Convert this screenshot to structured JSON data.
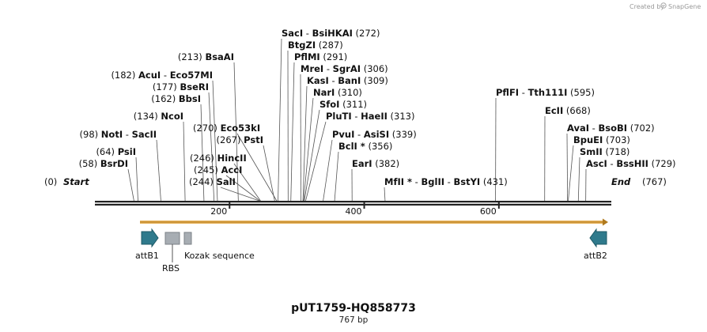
{
  "credit": {
    "created_by": "Created by",
    "brand": "SnapGene"
  },
  "map": {
    "title": "pUT1759-HQ858773",
    "length_label": "767 bp",
    "length_bp": 767,
    "start_label": "Start",
    "end_label": "End",
    "start_pos": "(0)",
    "end_pos": "(767)",
    "ticks": [
      {
        "bp": 200,
        "label": "200"
      },
      {
        "bp": 400,
        "label": "400"
      },
      {
        "bp": 600,
        "label": "600"
      }
    ]
  },
  "sites": [
    {
      "names": [
        {
          "n": "SacI"
        },
        {
          "n": "BsiHKAI"
        }
      ],
      "pos": "(272)",
      "bp": 272
    },
    {
      "names": [
        {
          "n": "BtgZI"
        }
      ],
      "pos": "(287)",
      "bp": 287
    },
    {
      "names": [
        {
          "n": "PflMI"
        }
      ],
      "pos": "(291)",
      "bp": 291
    },
    {
      "names": [
        {
          "n": "MreI"
        },
        {
          "n": "SgrAI"
        }
      ],
      "pos": "(306)",
      "bp": 306
    },
    {
      "names": [
        {
          "n": "KasI"
        },
        {
          "n": "BanI"
        }
      ],
      "pos": "(309)",
      "bp": 309
    },
    {
      "names": [
        {
          "n": "NarI"
        }
      ],
      "pos": "(310)",
      "bp": 310
    },
    {
      "names": [
        {
          "n": "SfoI"
        }
      ],
      "pos": "(311)",
      "bp": 311
    },
    {
      "names": [
        {
          "n": "PluTI"
        },
        {
          "n": "HaeII"
        }
      ],
      "pos": "(313)",
      "bp": 313
    },
    {
      "names": [
        {
          "n": "PvuI"
        },
        {
          "n": "AsiSI"
        }
      ],
      "pos": "(339)",
      "bp": 339
    },
    {
      "names": [
        {
          "n": "BclI",
          "star": "*"
        }
      ],
      "pos": "(356)",
      "bp": 356
    },
    {
      "names": [
        {
          "n": "EarI"
        }
      ],
      "pos": "(382)",
      "bp": 382
    },
    {
      "names": [
        {
          "n": "MfII",
          "star": "*"
        },
        {
          "n": "BglII"
        },
        {
          "n": "BstYI"
        }
      ],
      "pos": "(431)",
      "bp": 431
    },
    {
      "names": [
        {
          "n": "BsaAI"
        }
      ],
      "pos": "(213)",
      "bp": 213
    },
    {
      "names": [
        {
          "n": "AcuI"
        },
        {
          "n": "Eco57MI"
        }
      ],
      "pos": "(182)",
      "bp": 182
    },
    {
      "names": [
        {
          "n": "BseRI"
        }
      ],
      "pos": "(177)",
      "bp": 177
    },
    {
      "names": [
        {
          "n": "BbsI"
        }
      ],
      "pos": "(162)",
      "bp": 162
    },
    {
      "names": [
        {
          "n": "NcoI"
        }
      ],
      "pos": "(134)",
      "bp": 134
    },
    {
      "names": [
        {
          "n": "Eco53kI"
        }
      ],
      "pos": "(270)",
      "bp": 270
    },
    {
      "names": [
        {
          "n": "PstI"
        }
      ],
      "pos": "(267)",
      "bp": 267
    },
    {
      "names": [
        {
          "n": "NotI"
        },
        {
          "n": "SacII"
        }
      ],
      "pos": "(98)",
      "bp": 98
    },
    {
      "names": [
        {
          "n": "PsiI"
        }
      ],
      "pos": "(64)",
      "bp": 64
    },
    {
      "names": [
        {
          "n": "BsrDI"
        }
      ],
      "pos": "(58)",
      "bp": 58
    },
    {
      "names": [
        {
          "n": "HincII"
        }
      ],
      "pos": "(246)",
      "bp": 246
    },
    {
      "names": [
        {
          "n": "AccI"
        }
      ],
      "pos": "(245)",
      "bp": 245
    },
    {
      "names": [
        {
          "n": "SalI"
        }
      ],
      "pos": "(244)",
      "bp": 244
    },
    {
      "names": [
        {
          "n": "PflFI"
        },
        {
          "n": "Tth111I"
        }
      ],
      "pos": "(595)",
      "bp": 595
    },
    {
      "names": [
        {
          "n": "EcII"
        }
      ],
      "pos": "(668)",
      "bp": 668
    },
    {
      "names": [
        {
          "n": "AvaI"
        },
        {
          "n": "BsoBI"
        }
      ],
      "pos": "(702)",
      "bp": 702
    },
    {
      "names": [
        {
          "n": "BpuEI"
        }
      ],
      "pos": "(703)",
      "bp": 703
    },
    {
      "names": [
        {
          "n": "SmII"
        }
      ],
      "pos": "(718)",
      "bp": 718
    },
    {
      "names": [
        {
          "n": "AscI"
        },
        {
          "n": "BssHII"
        }
      ],
      "pos": "(729)",
      "bp": 729
    }
  ],
  "features": [
    {
      "name": "attB1",
      "type": "arrow-right",
      "color": "#2f7a8c"
    },
    {
      "name": "RBS",
      "type": "box",
      "color": "#a7adb3"
    },
    {
      "name": "Kozak sequence",
      "type": "box",
      "color": "#a7adb3"
    },
    {
      "name": "attB2",
      "type": "arrow-left",
      "color": "#2f7a8c"
    }
  ],
  "orf": {
    "color": "#e7b35a",
    "direction": "forward"
  },
  "colors": {
    "backbone": "#222222",
    "site_line": "#555555",
    "feature_arrow": "#2f7a8c",
    "feature_box": "#a7adb3",
    "orf": "#e7b35a"
  }
}
